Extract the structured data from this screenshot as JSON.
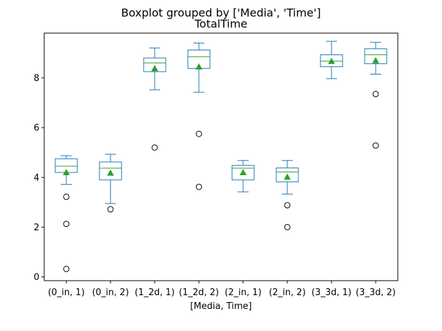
{
  "chart_data": {
    "type": "box",
    "suptitle": "Boxplot grouped by ['Media', 'Time']",
    "title": "TotalTime",
    "xlabel": "[Media, Time]",
    "ylabel": "",
    "ylim": [
      -0.15,
      9.8
    ],
    "yticks": [
      0,
      2,
      4,
      6,
      8
    ],
    "grid": false,
    "show_means": true,
    "colors": {
      "box": "#1f77b4",
      "median": "#2ca02c",
      "mean": "#2ca02c",
      "flier": "#000000"
    },
    "categories": [
      "(0_in, 1)",
      "(0_in, 2)",
      "(1_2d, 1)",
      "(1_2d, 2)",
      "(2_in, 1)",
      "(2_in, 2)",
      "(3_3d, 1)",
      "(3_3d, 2)"
    ],
    "boxes": [
      {
        "whislo": 3.72,
        "q1": 4.2,
        "median": 4.45,
        "q3": 4.75,
        "whishi": 4.87,
        "mean": 4.2,
        "fliers": [
          3.22,
          2.13,
          0.32
        ]
      },
      {
        "whislo": 2.95,
        "q1": 3.9,
        "median": 4.37,
        "q3": 4.62,
        "whishi": 4.93,
        "mean": 4.18,
        "fliers": [
          2.72
        ]
      },
      {
        "whislo": 7.52,
        "q1": 8.25,
        "median": 8.6,
        "q3": 8.8,
        "whishi": 9.2,
        "mean": 8.38,
        "fliers": [
          5.2
        ]
      },
      {
        "whislo": 7.42,
        "q1": 8.38,
        "median": 8.85,
        "q3": 9.12,
        "whishi": 9.4,
        "mean": 8.45,
        "fliers": [
          5.75,
          3.62
        ]
      },
      {
        "whislo": 3.42,
        "q1": 3.9,
        "median": 4.37,
        "q3": 4.48,
        "whishi": 4.68,
        "mean": 4.2,
        "fliers": []
      },
      {
        "whislo": 3.33,
        "q1": 3.82,
        "median": 4.22,
        "q3": 4.38,
        "whishi": 4.68,
        "mean": 4.02,
        "fliers": [
          2.88,
          2.0
        ]
      },
      {
        "whislo": 7.97,
        "q1": 8.45,
        "median": 8.67,
        "q3": 8.93,
        "whishi": 9.47,
        "mean": 8.67,
        "fliers": []
      },
      {
        "whislo": 8.15,
        "q1": 8.57,
        "median": 8.93,
        "q3": 9.17,
        "whishi": 9.43,
        "mean": 8.7,
        "fliers": [
          7.35,
          5.28
        ]
      }
    ]
  }
}
